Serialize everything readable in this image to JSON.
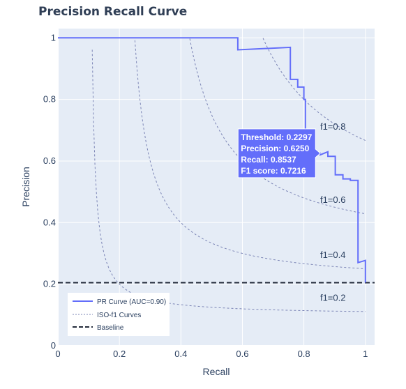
{
  "chart_data": {
    "type": "line",
    "title": "Precision Recall Curve",
    "xlabel": "Recall",
    "ylabel": "Precision",
    "xlim": [
      0,
      1.03
    ],
    "ylim": [
      0,
      1.03
    ],
    "xticks": [
      0,
      0.2,
      0.4,
      0.6,
      0.8,
      1
    ],
    "xtick_labels": [
      "0",
      "0.2",
      "0.4",
      "0.6",
      "0.8",
      "1"
    ],
    "yticks": [
      0,
      0.2,
      0.4,
      0.6,
      0.8,
      1
    ],
    "ytick_labels": [
      "0",
      "0.2",
      "0.4",
      "0.6",
      "0.8",
      "1"
    ],
    "grid": true,
    "legend_position": "bottom-left",
    "colors": {
      "pr_curve": "#636efa",
      "iso": "#7b84b5",
      "baseline": "#222a3a",
      "plot_bg": "#e5ecf6"
    },
    "series": [
      {
        "name": "PR Curve (AUC=0.90)",
        "style": "solid",
        "x": [
          0,
          0.585,
          0.585,
          0.756,
          0.756,
          0.78,
          0.78,
          0.8,
          0.8,
          0.805,
          0.805,
          0.853,
          0.853,
          0.878,
          0.878,
          0.902,
          0.902,
          0.927,
          0.927,
          0.951,
          0.951,
          0.976,
          0.976,
          0.976,
          1,
          1,
          1
        ],
        "y": [
          1,
          1,
          0.961,
          0.969,
          0.865,
          0.865,
          0.84,
          0.84,
          0.8,
          0.8,
          0.615,
          0.625,
          0.62,
          0.63,
          0.615,
          0.615,
          0.555,
          0.555,
          0.542,
          0.542,
          0.537,
          0.537,
          0.27,
          0.27,
          0.277,
          0.205,
          0.205
        ]
      },
      {
        "name": "ISO-f1 Curves",
        "style": "dotted",
        "f1_values": [
          0.2,
          0.4,
          0.6,
          0.8
        ],
        "labels": [
          "f1=0.2",
          "f1=0.4",
          "f1=0.6",
          "f1=0.8"
        ]
      },
      {
        "name": "Baseline",
        "style": "dashed",
        "y": 0.205
      }
    ],
    "hover": {
      "threshold_text": "Threshold: 0.2297",
      "precision_text": "Precision: 0.6250",
      "recall_text": "Recall: 0.8537",
      "f1_text": "F1 score: 0.7216",
      "recall": 0.8537,
      "precision": 0.625
    }
  }
}
